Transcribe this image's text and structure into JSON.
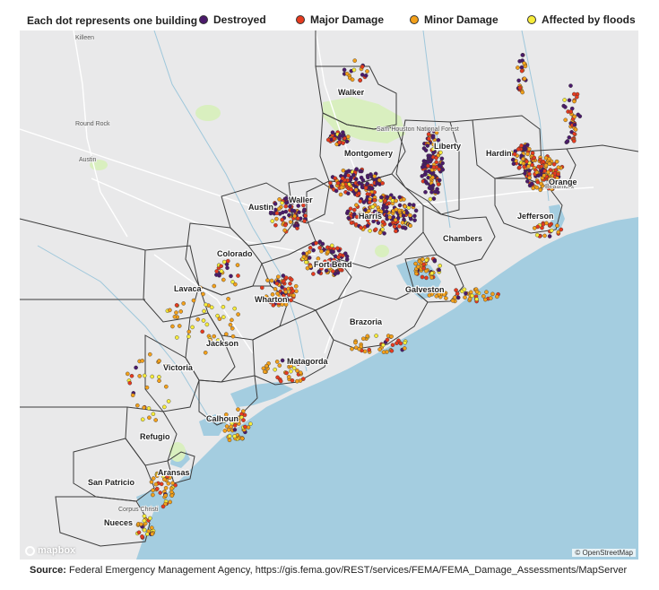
{
  "legend": {
    "lead": "Each dot represents one building",
    "items": [
      {
        "label": "Destroyed",
        "color": "#4b1a6b"
      },
      {
        "label": "Major Damage",
        "color": "#e63b1f"
      },
      {
        "label": "Minor Damage",
        "color": "#f3a01a"
      },
      {
        "label": "Affected by floods",
        "color": "#f7ec3a"
      }
    ]
  },
  "counties": [
    "Walker",
    "Montgomery",
    "Liberty",
    "Hardin",
    "Orange",
    "Jefferson",
    "Austin",
    "Waller",
    "Harris",
    "Chambers",
    "Colorado",
    "Fort Bend",
    "Galveston",
    "Lavaca",
    "Wharton",
    "Brazoria",
    "Jackson",
    "Matagorda",
    "Victoria",
    "Calhoun",
    "Refugio",
    "Aransas",
    "San Patricio",
    "Nueces"
  ],
  "towns": [
    "Killeen",
    "Round Rock",
    "Austin",
    "Sam Houston National Forest",
    "Beaumont",
    "Corpus Christi"
  ],
  "map": {
    "logo": "mapbox",
    "attribution": "© OpenStreetMap",
    "colors": {
      "land": "#e9e9ea",
      "water": "#a4cde0",
      "forest": "#d9efbf",
      "border": "#3c3c3c"
    }
  },
  "source": {
    "label": "Source:",
    "text": "Federal Emergency Management Agency, https://gis.fema.gov/REST/services/FEMA/FEMA_Damage_Assessments/MapServer"
  }
}
